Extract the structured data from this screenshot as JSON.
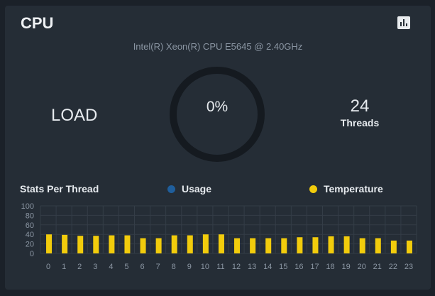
{
  "card": {
    "title": "CPU",
    "icon": "bar-chart-icon",
    "cpu_model": "Intel(R) Xeon(R) CPU E5645 @ 2.40GHz",
    "load_label": "LOAD",
    "load_percent": "0%",
    "load_value": 0,
    "threads_count": "24",
    "threads_label": "Threads"
  },
  "stats": {
    "title": "Stats Per Thread",
    "legend": [
      {
        "label": "Usage",
        "color": "#1f5e9c"
      },
      {
        "label": "Temperature",
        "color": "#f2cc0c"
      }
    ]
  },
  "colors": {
    "background": "#1b2129",
    "card": "#252d36",
    "gauge_track": "#151a20",
    "grid": "#343d47",
    "axis_text": "#8b96a3"
  },
  "chart_data": {
    "type": "bar",
    "categories": [
      "0",
      "1",
      "2",
      "3",
      "4",
      "5",
      "6",
      "7",
      "8",
      "9",
      "10",
      "11",
      "12",
      "13",
      "14",
      "15",
      "16",
      "17",
      "18",
      "19",
      "20",
      "21",
      "22",
      "23"
    ],
    "ylim": [
      0,
      100
    ],
    "yticks": [
      0,
      20,
      40,
      60,
      80,
      100
    ],
    "grid": true,
    "legend_position": "top",
    "series": [
      {
        "name": "Usage",
        "color": "#1f5e9c",
        "values": [
          0,
          0,
          0,
          0,
          0,
          0,
          0,
          0,
          0,
          0,
          0,
          0,
          0,
          0,
          0,
          0,
          0,
          0,
          0,
          0,
          0,
          0,
          0,
          0
        ]
      },
      {
        "name": "Temperature",
        "color": "#f2cc0c",
        "values": [
          40,
          39,
          37,
          37,
          38,
          38,
          32,
          32,
          38,
          38,
          40,
          40,
          32,
          32,
          32,
          32,
          34,
          34,
          36,
          36,
          32,
          32,
          27,
          27
        ]
      }
    ]
  }
}
